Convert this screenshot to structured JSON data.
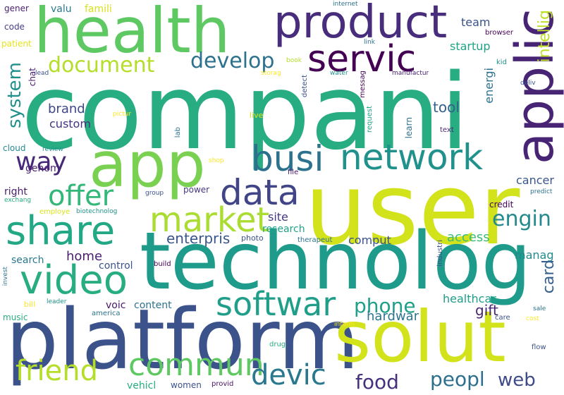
{
  "palette": {
    "dark_purple": "#440154",
    "purple": "#472d7b",
    "indigo": "#3b528b",
    "blue": "#2c728e",
    "teal": "#21918c",
    "green_teal": "#27ad81",
    "green": "#5ec962",
    "lime": "#aadc32",
    "yellow": "#fde725",
    "yellow_green": "#d2e21b"
  },
  "words": [
    {
      "text": "compani",
      "color": "#27ad81"
    },
    {
      "text": "user",
      "color": "#d2e21b"
    },
    {
      "text": "technolog",
      "color": "#1e9b8a"
    },
    {
      "text": "platform",
      "color": "#3b528b"
    },
    {
      "text": "health",
      "color": "#5ec962"
    },
    {
      "text": "app",
      "color": "#7ad151"
    },
    {
      "text": "product",
      "color": "#472d7b"
    },
    {
      "text": "solut",
      "color": "#d2e21b"
    },
    {
      "text": "applic",
      "color": "#482475"
    },
    {
      "text": "servic",
      "color": "#440154"
    },
    {
      "text": "network",
      "color": "#21918c"
    },
    {
      "text": "busi",
      "color": "#2c728e"
    },
    {
      "text": "data",
      "color": "#414487"
    },
    {
      "text": "share",
      "color": "#22a884"
    },
    {
      "text": "video",
      "color": "#27ad81"
    },
    {
      "text": "market",
      "color": "#aadc32"
    },
    {
      "text": "softwar",
      "color": "#1f9e89"
    },
    {
      "text": "commun",
      "color": "#5ec962"
    },
    {
      "text": "friend",
      "color": "#b5de2b"
    },
    {
      "text": "devic",
      "color": "#2a788e"
    },
    {
      "text": "offer",
      "color": "#35b779"
    },
    {
      "text": "way",
      "color": "#482878"
    },
    {
      "text": "document",
      "color": "#b5de2b"
    },
    {
      "text": "develop",
      "color": "#2c728e"
    },
    {
      "text": "intellig",
      "color": "#bddf26"
    },
    {
      "text": "system",
      "color": "#21918c"
    },
    {
      "text": "engin",
      "color": "#238a8d"
    },
    {
      "text": "card",
      "color": "#355f8d"
    },
    {
      "text": "phone",
      "color": "#1fa088"
    },
    {
      "text": "food",
      "color": "#46307e"
    },
    {
      "text": "web",
      "color": "#3e4a89"
    },
    {
      "text": "peopl",
      "color": "#2d708e"
    },
    {
      "text": "enterpris",
      "color": "#3a548c"
    },
    {
      "text": "hardwar",
      "color": "#2b758e"
    },
    {
      "text": "gift",
      "color": "#482475"
    },
    {
      "text": "access",
      "color": "#3dbc74"
    },
    {
      "text": "tool",
      "color": "#35608d"
    },
    {
      "text": "energi",
      "color": "#2c728e"
    },
    {
      "text": "team",
      "color": "#3b528b"
    },
    {
      "text": "startup",
      "color": "#20a386"
    },
    {
      "text": "home",
      "color": "#481f70"
    },
    {
      "text": "site",
      "color": "#443a83"
    },
    {
      "text": "brand",
      "color": "#3f4788"
    },
    {
      "text": "custom",
      "color": "#46337f"
    },
    {
      "text": "genom",
      "color": "#482173"
    },
    {
      "text": "cancer",
      "color": "#39568c"
    },
    {
      "text": "manag",
      "color": "#238a8d"
    },
    {
      "text": "comput",
      "color": "#3b528b"
    },
    {
      "text": "research",
      "color": "#20a386"
    },
    {
      "text": "content",
      "color": "#2c728e"
    },
    {
      "text": "voic",
      "color": "#481467"
    },
    {
      "text": "control",
      "color": "#3b528b"
    },
    {
      "text": "healthcar",
      "color": "#1f9e89"
    },
    {
      "text": "search",
      "color": "#2a788e"
    },
    {
      "text": "credit",
      "color": "#440154"
    },
    {
      "text": "cloud",
      "color": "#238a8d"
    },
    {
      "text": "right",
      "color": "#481c6e"
    },
    {
      "text": "power",
      "color": "#453781"
    },
    {
      "text": "famili",
      "color": "#d8e219"
    },
    {
      "text": "valu",
      "color": "#2a788e"
    },
    {
      "text": "gener",
      "color": "#481f70"
    },
    {
      "text": "code",
      "color": "#433e85"
    },
    {
      "text": "patient",
      "color": "#e5e419"
    },
    {
      "text": "chat",
      "color": "#481a6c"
    },
    {
      "text": "lead",
      "color": "#3b528b"
    },
    {
      "text": "internet",
      "color": "#2c728e"
    },
    {
      "text": "link",
      "color": "#2c728e"
    },
    {
      "text": "book",
      "color": "#b5de2b"
    },
    {
      "text": "storag",
      "color": "#fde725"
    },
    {
      "text": "water",
      "color": "#21918c"
    },
    {
      "text": "messag",
      "color": "#440154"
    },
    {
      "text": "manufactur",
      "color": "#482475"
    },
    {
      "text": "detect",
      "color": "#3b528b"
    },
    {
      "text": "request",
      "color": "#20a386"
    },
    {
      "text": "learn",
      "color": "#2c728e"
    },
    {
      "text": "browser",
      "color": "#440154"
    },
    {
      "text": "kid",
      "color": "#21918c"
    },
    {
      "text": "deliv",
      "color": "#3b528b"
    },
    {
      "text": "text",
      "color": "#482878"
    },
    {
      "text": "live",
      "color": "#dde318"
    },
    {
      "text": "lab",
      "color": "#2c728e"
    },
    {
      "text": "pictur",
      "color": "#fde725"
    },
    {
      "text": "review",
      "color": "#21918c"
    },
    {
      "text": "shop",
      "color": "#fde725"
    },
    {
      "text": "file",
      "color": "#481467"
    },
    {
      "text": "group",
      "color": "#3b528b"
    },
    {
      "text": "predict",
      "color": "#2c728e"
    },
    {
      "text": "exchang",
      "color": "#27ad81"
    },
    {
      "text": "employe",
      "color": "#dde318"
    },
    {
      "text": "biotechnolog",
      "color": "#21918c"
    },
    {
      "text": "photo",
      "color": "#3b528b"
    },
    {
      "text": "therapeut",
      "color": "#2c728e"
    },
    {
      "text": "build",
      "color": "#440154"
    },
    {
      "text": "industri",
      "color": "#3b528b"
    },
    {
      "text": "invest",
      "color": "#2c728e"
    },
    {
      "text": "bill",
      "color": "#fde725"
    },
    {
      "text": "leader",
      "color": "#21918c"
    },
    {
      "text": "music",
      "color": "#27ad81"
    },
    {
      "text": "america",
      "color": "#2c728e"
    },
    {
      "text": "inform",
      "color": "#fde725"
    },
    {
      "text": "care",
      "color": "#3b528b"
    },
    {
      "text": "cost",
      "color": "#fde725"
    },
    {
      "text": "sale",
      "color": "#2c728e"
    },
    {
      "text": "drug",
      "color": "#27ad81"
    },
    {
      "text": "flow",
      "color": "#3b528b"
    },
    {
      "text": "vehicl",
      "color": "#27ad81"
    },
    {
      "text": "women",
      "color": "#3b528b"
    },
    {
      "text": "provid",
      "color": "#481467"
    }
  ]
}
